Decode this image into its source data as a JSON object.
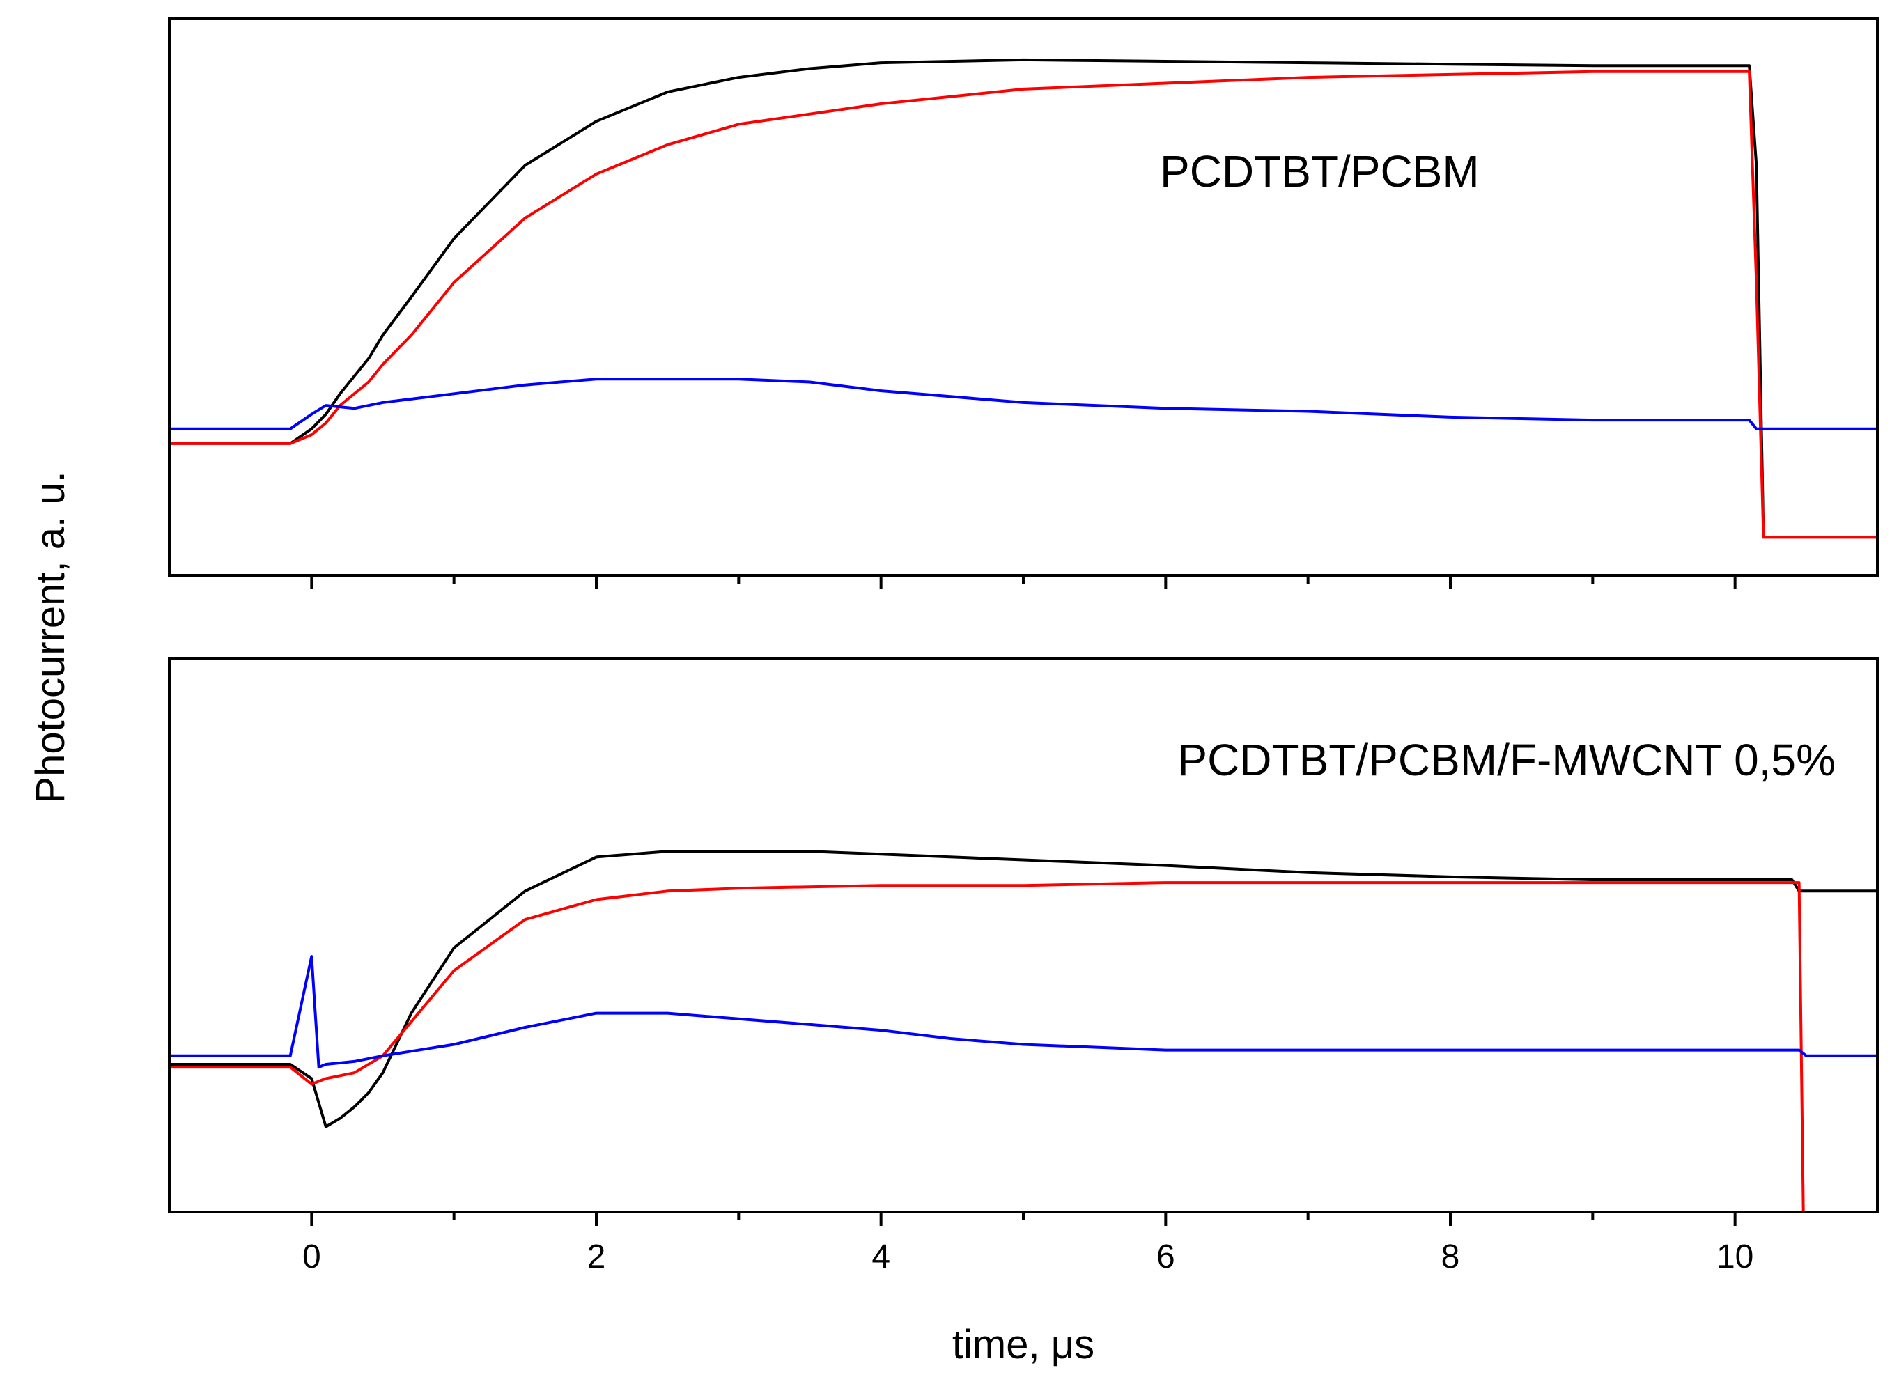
{
  "chart_data": [
    {
      "type": "line",
      "title": "PCDTBT/PCBM",
      "panel": "top",
      "xlabel": "time, μs",
      "ylabel": "Photocurrent, a. u.",
      "xlim": [
        -1,
        11
      ],
      "ylim": [
        -0.5,
        1.4
      ],
      "x_ticks": [
        0,
        2,
        4,
        6,
        8,
        10
      ],
      "x_tick_labels": [],
      "y_ticks": [],
      "grid": false,
      "series": [
        {
          "name": "black",
          "color": "#000000",
          "x": [
            -1,
            -0.15,
            0,
            0.1,
            0.2,
            0.3,
            0.4,
            0.5,
            0.7,
            1.0,
            1.5,
            2.0,
            2.5,
            3.0,
            3.5,
            4.0,
            5.0,
            6.0,
            7.0,
            8.0,
            9.0,
            10.1,
            10.15,
            10.2,
            11
          ],
          "y": [
            -0.05,
            -0.05,
            0.0,
            0.05,
            0.12,
            0.18,
            0.24,
            0.32,
            0.45,
            0.65,
            0.9,
            1.05,
            1.15,
            1.2,
            1.23,
            1.25,
            1.26,
            1.255,
            1.25,
            1.245,
            1.24,
            1.24,
            0.9,
            -0.37,
            -0.37
          ]
        },
        {
          "name": "red",
          "color": "#ff0000",
          "x": [
            -1,
            -0.15,
            0,
            0.1,
            0.2,
            0.3,
            0.4,
            0.5,
            0.7,
            1.0,
            1.5,
            2.0,
            2.5,
            3.0,
            4.0,
            5.0,
            6.0,
            7.0,
            8.0,
            9.0,
            10.1,
            10.15,
            10.2,
            11
          ],
          "y": [
            -0.05,
            -0.05,
            -0.02,
            0.02,
            0.08,
            0.12,
            0.16,
            0.22,
            0.32,
            0.5,
            0.72,
            0.87,
            0.97,
            1.04,
            1.11,
            1.16,
            1.18,
            1.2,
            1.21,
            1.22,
            1.22,
            0.5,
            -0.37,
            -0.37
          ]
        },
        {
          "name": "blue",
          "color": "#0000ff",
          "x": [
            -1,
            -0.15,
            0,
            0.1,
            0.3,
            0.5,
            1.0,
            1.5,
            2.0,
            2.5,
            3.0,
            3.5,
            4.0,
            5.0,
            6.0,
            7.0,
            8.0,
            9.0,
            10.1,
            10.15,
            11
          ],
          "y": [
            0.0,
            0.0,
            0.05,
            0.08,
            0.07,
            0.09,
            0.12,
            0.15,
            0.17,
            0.17,
            0.17,
            0.16,
            0.13,
            0.09,
            0.07,
            0.06,
            0.04,
            0.03,
            0.03,
            0.0,
            0.0
          ]
        }
      ]
    },
    {
      "type": "line",
      "title": "PCDTBT/PCBM/F-MWCNT 0,5%",
      "panel": "bottom",
      "xlabel": "time, μs",
      "ylabel": "Photocurrent, a. u.",
      "xlim": [
        -1,
        11
      ],
      "ylim": [
        -0.55,
        1.4
      ],
      "x_ticks": [
        0,
        2,
        4,
        6,
        8,
        10
      ],
      "x_tick_labels": [
        "0",
        "2",
        "4",
        "6",
        "8",
        "10"
      ],
      "y_ticks": [],
      "grid": false,
      "series": [
        {
          "name": "black",
          "color": "#000000",
          "x": [
            -1,
            -0.15,
            0,
            0.1,
            0.2,
            0.3,
            0.4,
            0.5,
            0.7,
            1.0,
            1.5,
            2.0,
            2.5,
            3.0,
            3.5,
            4.0,
            5.0,
            6.0,
            7.0,
            8.0,
            9.0,
            10.4,
            10.45,
            11
          ],
          "y": [
            -0.03,
            -0.03,
            -0.08,
            -0.25,
            -0.22,
            -0.18,
            -0.13,
            -0.06,
            0.15,
            0.38,
            0.58,
            0.7,
            0.72,
            0.72,
            0.72,
            0.71,
            0.69,
            0.67,
            0.645,
            0.63,
            0.62,
            0.62,
            0.58,
            0.58
          ]
        },
        {
          "name": "red",
          "color": "#ff0000",
          "x": [
            -1,
            -0.15,
            0,
            0.1,
            0.3,
            0.5,
            0.7,
            1.0,
            1.5,
            2.0,
            2.5,
            3.0,
            4.0,
            5.0,
            6.0,
            7.0,
            8.0,
            9.0,
            10.45,
            10.48,
            11
          ],
          "y": [
            -0.04,
            -0.04,
            -0.1,
            -0.08,
            -0.06,
            0.0,
            0.12,
            0.3,
            0.48,
            0.55,
            0.58,
            0.59,
            0.6,
            0.6,
            0.61,
            0.61,
            0.61,
            0.61,
            0.61,
            -0.55,
            -0.55
          ]
        },
        {
          "name": "blue",
          "color": "#0000ff",
          "x": [
            -1,
            -0.15,
            0,
            0.05,
            0.1,
            0.3,
            0.5,
            1.0,
            1.5,
            2.0,
            2.5,
            3.0,
            3.5,
            4.0,
            4.5,
            5.0,
            6.0,
            7.0,
            8.0,
            9.0,
            10.45,
            10.5,
            11
          ],
          "y": [
            0.0,
            0.0,
            0.35,
            -0.04,
            -0.03,
            -0.02,
            0.0,
            0.04,
            0.1,
            0.15,
            0.15,
            0.13,
            0.11,
            0.09,
            0.06,
            0.04,
            0.02,
            0.02,
            0.02,
            0.02,
            0.02,
            0.0,
            0.0
          ]
        }
      ]
    }
  ]
}
